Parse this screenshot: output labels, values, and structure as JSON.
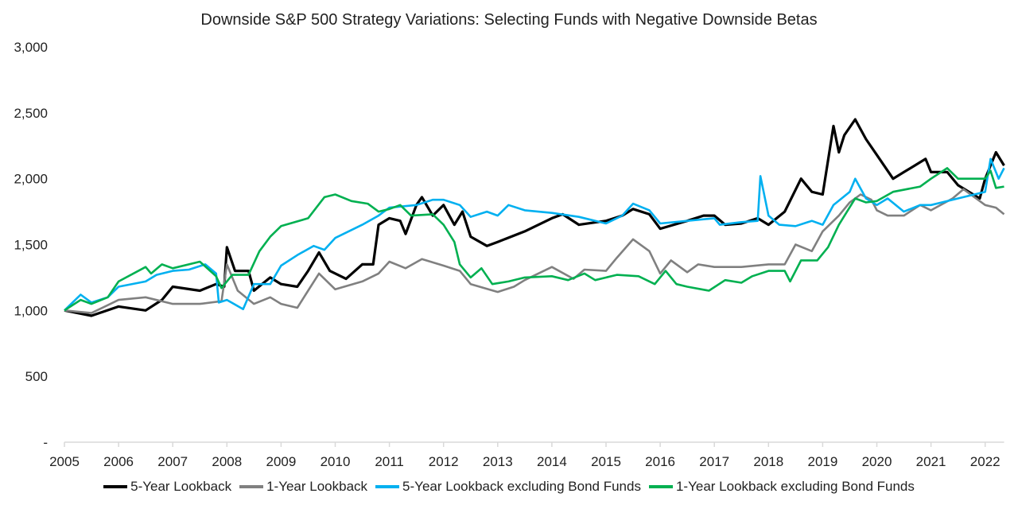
{
  "chart_data": {
    "type": "line",
    "title": "Downside S&P 500 Strategy Variations: Selecting Funds with Negative Downside Betas",
    "xlabel": "",
    "ylabel": "",
    "xlim": [
      2005,
      2022.35
    ],
    "ylim": [
      0,
      3000
    ],
    "grid": false,
    "legend": "bottom",
    "x_ticks": [
      "2005",
      "2006",
      "2007",
      "2008",
      "2009",
      "2010",
      "2011",
      "2012",
      "2013",
      "2014",
      "2015",
      "2016",
      "2017",
      "2018",
      "2019",
      "2020",
      "2021",
      "2022"
    ],
    "y_ticks": [
      {
        "v": 0,
        "label": "-"
      },
      {
        "v": 500,
        "label": "500"
      },
      {
        "v": 1000,
        "label": "1,000"
      },
      {
        "v": 1500,
        "label": "1,500"
      },
      {
        "v": 2000,
        "label": "2,000"
      },
      {
        "v": 2500,
        "label": "2,500"
      },
      {
        "v": 3000,
        "label": "3,000"
      }
    ],
    "series": [
      {
        "name": "5-Year Lookback",
        "color": "#000000",
        "points": [
          [
            2005,
            1000
          ],
          [
            2005.5,
            960
          ],
          [
            2006,
            1030
          ],
          [
            2006.5,
            1000
          ],
          [
            2006.8,
            1080
          ],
          [
            2007,
            1180
          ],
          [
            2007.5,
            1150
          ],
          [
            2007.8,
            1200
          ],
          [
            2007.95,
            1180
          ],
          [
            2008,
            1480
          ],
          [
            2008.15,
            1300
          ],
          [
            2008.4,
            1300
          ],
          [
            2008.5,
            1150
          ],
          [
            2008.8,
            1250
          ],
          [
            2009,
            1200
          ],
          [
            2009.3,
            1180
          ],
          [
            2009.5,
            1300
          ],
          [
            2009.7,
            1440
          ],
          [
            2009.9,
            1300
          ],
          [
            2010.2,
            1240
          ],
          [
            2010.5,
            1350
          ],
          [
            2010.7,
            1350
          ],
          [
            2010.8,
            1650
          ],
          [
            2011,
            1700
          ],
          [
            2011.2,
            1680
          ],
          [
            2011.3,
            1580
          ],
          [
            2011.5,
            1800
          ],
          [
            2011.6,
            1860
          ],
          [
            2011.8,
            1720
          ],
          [
            2012,
            1800
          ],
          [
            2012.2,
            1650
          ],
          [
            2012.35,
            1750
          ],
          [
            2012.5,
            1560
          ],
          [
            2012.8,
            1490
          ],
          [
            2013,
            1520
          ],
          [
            2013.5,
            1600
          ],
          [
            2014,
            1700
          ],
          [
            2014.2,
            1730
          ],
          [
            2014.5,
            1650
          ],
          [
            2015,
            1680
          ],
          [
            2015.3,
            1720
          ],
          [
            2015.5,
            1770
          ],
          [
            2015.8,
            1730
          ],
          [
            2016,
            1620
          ],
          [
            2016.5,
            1680
          ],
          [
            2016.8,
            1720
          ],
          [
            2017,
            1720
          ],
          [
            2017.2,
            1650
          ],
          [
            2017.5,
            1660
          ],
          [
            2017.8,
            1700
          ],
          [
            2018,
            1650
          ],
          [
            2018.3,
            1750
          ],
          [
            2018.6,
            2000
          ],
          [
            2018.8,
            1900
          ],
          [
            2019,
            1880
          ],
          [
            2019.2,
            2400
          ],
          [
            2019.3,
            2200
          ],
          [
            2019.4,
            2330
          ],
          [
            2019.6,
            2450
          ],
          [
            2019.8,
            2300
          ],
          [
            2020,
            2180
          ],
          [
            2020.3,
            2000
          ],
          [
            2020.5,
            2050
          ],
          [
            2020.7,
            2100
          ],
          [
            2020.9,
            2150
          ],
          [
            2021,
            2050
          ],
          [
            2021.3,
            2050
          ],
          [
            2021.5,
            1950
          ],
          [
            2021.7,
            1900
          ],
          [
            2021.9,
            1850
          ],
          [
            2022,
            2000
          ],
          [
            2022.2,
            2200
          ],
          [
            2022.35,
            2100
          ]
        ]
      },
      {
        "name": "1-Year Lookback",
        "color": "#808080",
        "points": [
          [
            2005,
            1000
          ],
          [
            2005.5,
            980
          ],
          [
            2006,
            1080
          ],
          [
            2006.5,
            1100
          ],
          [
            2007,
            1050
          ],
          [
            2007.5,
            1050
          ],
          [
            2007.9,
            1070
          ],
          [
            2008,
            1350
          ],
          [
            2008.2,
            1150
          ],
          [
            2008.5,
            1050
          ],
          [
            2008.8,
            1100
          ],
          [
            2009,
            1050
          ],
          [
            2009.3,
            1020
          ],
          [
            2009.5,
            1150
          ],
          [
            2009.7,
            1280
          ],
          [
            2010,
            1160
          ],
          [
            2010.5,
            1220
          ],
          [
            2010.8,
            1280
          ],
          [
            2011,
            1370
          ],
          [
            2011.3,
            1320
          ],
          [
            2011.6,
            1390
          ],
          [
            2012,
            1340
          ],
          [
            2012.3,
            1300
          ],
          [
            2012.5,
            1200
          ],
          [
            2013,
            1140
          ],
          [
            2013.3,
            1180
          ],
          [
            2013.5,
            1230
          ],
          [
            2014,
            1330
          ],
          [
            2014.4,
            1240
          ],
          [
            2014.6,
            1310
          ],
          [
            2015,
            1300
          ],
          [
            2015.2,
            1400
          ],
          [
            2015.5,
            1540
          ],
          [
            2015.8,
            1450
          ],
          [
            2016,
            1280
          ],
          [
            2016.2,
            1380
          ],
          [
            2016.5,
            1290
          ],
          [
            2016.7,
            1350
          ],
          [
            2017,
            1330
          ],
          [
            2017.5,
            1330
          ],
          [
            2018,
            1350
          ],
          [
            2018.3,
            1350
          ],
          [
            2018.5,
            1500
          ],
          [
            2018.8,
            1450
          ],
          [
            2019,
            1600
          ],
          [
            2019.3,
            1720
          ],
          [
            2019.5,
            1820
          ],
          [
            2019.7,
            1880
          ],
          [
            2019.9,
            1840
          ],
          [
            2020,
            1760
          ],
          [
            2020.2,
            1720
          ],
          [
            2020.5,
            1720
          ],
          [
            2020.8,
            1800
          ],
          [
            2021,
            1760
          ],
          [
            2021.4,
            1850
          ],
          [
            2021.6,
            1920
          ],
          [
            2022,
            1800
          ],
          [
            2022.2,
            1780
          ],
          [
            2022.35,
            1730
          ]
        ]
      },
      {
        "name": "5-Year Lookback excluding Bond Funds",
        "color": "#00b0f0",
        "points": [
          [
            2005,
            1000
          ],
          [
            2005.3,
            1120
          ],
          [
            2005.5,
            1060
          ],
          [
            2005.8,
            1100
          ],
          [
            2006,
            1180
          ],
          [
            2006.5,
            1220
          ],
          [
            2006.7,
            1270
          ],
          [
            2007,
            1300
          ],
          [
            2007.3,
            1310
          ],
          [
            2007.6,
            1350
          ],
          [
            2007.8,
            1280
          ],
          [
            2007.85,
            1060
          ],
          [
            2008,
            1080
          ],
          [
            2008.3,
            1010
          ],
          [
            2008.5,
            1200
          ],
          [
            2008.8,
            1200
          ],
          [
            2009,
            1340
          ],
          [
            2009.3,
            1420
          ],
          [
            2009.6,
            1490
          ],
          [
            2009.8,
            1460
          ],
          [
            2010,
            1550
          ],
          [
            2010.5,
            1650
          ],
          [
            2010.8,
            1720
          ],
          [
            2011,
            1780
          ],
          [
            2011.5,
            1800
          ],
          [
            2011.8,
            1840
          ],
          [
            2012,
            1840
          ],
          [
            2012.3,
            1800
          ],
          [
            2012.5,
            1710
          ],
          [
            2012.8,
            1750
          ],
          [
            2013,
            1720
          ],
          [
            2013.2,
            1800
          ],
          [
            2013.5,
            1760
          ],
          [
            2014,
            1740
          ],
          [
            2014.5,
            1710
          ],
          [
            2015,
            1660
          ],
          [
            2015.3,
            1720
          ],
          [
            2015.5,
            1810
          ],
          [
            2015.8,
            1760
          ],
          [
            2016,
            1660
          ],
          [
            2016.5,
            1680
          ],
          [
            2017,
            1700
          ],
          [
            2017.1,
            1650
          ],
          [
            2017.5,
            1670
          ],
          [
            2017.8,
            1680
          ],
          [
            2017.85,
            2020
          ],
          [
            2018,
            1720
          ],
          [
            2018.2,
            1650
          ],
          [
            2018.5,
            1640
          ],
          [
            2018.8,
            1680
          ],
          [
            2019,
            1650
          ],
          [
            2019.2,
            1800
          ],
          [
            2019.5,
            1900
          ],
          [
            2019.6,
            2000
          ],
          [
            2019.8,
            1850
          ],
          [
            2020,
            1800
          ],
          [
            2020.2,
            1850
          ],
          [
            2020.5,
            1750
          ],
          [
            2020.8,
            1800
          ],
          [
            2021,
            1800
          ],
          [
            2021.5,
            1850
          ],
          [
            2021.8,
            1880
          ],
          [
            2022,
            1900
          ],
          [
            2022.1,
            2150
          ],
          [
            2022.25,
            2000
          ],
          [
            2022.35,
            2080
          ]
        ]
      },
      {
        "name": "1-Year Lookback excluding Bond Funds",
        "color": "#00b050",
        "points": [
          [
            2005,
            1000
          ],
          [
            2005.3,
            1080
          ],
          [
            2005.5,
            1050
          ],
          [
            2005.8,
            1100
          ],
          [
            2006,
            1220
          ],
          [
            2006.5,
            1330
          ],
          [
            2006.6,
            1280
          ],
          [
            2006.8,
            1350
          ],
          [
            2007,
            1320
          ],
          [
            2007.5,
            1370
          ],
          [
            2007.8,
            1260
          ],
          [
            2007.9,
            1170
          ],
          [
            2008.1,
            1270
          ],
          [
            2008.4,
            1270
          ],
          [
            2008.6,
            1450
          ],
          [
            2008.8,
            1560
          ],
          [
            2009,
            1640
          ],
          [
            2009.5,
            1700
          ],
          [
            2009.8,
            1860
          ],
          [
            2010,
            1880
          ],
          [
            2010.3,
            1830
          ],
          [
            2010.6,
            1810
          ],
          [
            2010.8,
            1750
          ],
          [
            2011,
            1770
          ],
          [
            2011.2,
            1800
          ],
          [
            2011.4,
            1720
          ],
          [
            2011.8,
            1730
          ],
          [
            2012,
            1650
          ],
          [
            2012.2,
            1520
          ],
          [
            2012.3,
            1350
          ],
          [
            2012.5,
            1250
          ],
          [
            2012.7,
            1320
          ],
          [
            2012.9,
            1200
          ],
          [
            2013.2,
            1220
          ],
          [
            2013.5,
            1250
          ],
          [
            2014,
            1260
          ],
          [
            2014.3,
            1230
          ],
          [
            2014.6,
            1280
          ],
          [
            2014.8,
            1230
          ],
          [
            2015.2,
            1270
          ],
          [
            2015.6,
            1260
          ],
          [
            2015.9,
            1200
          ],
          [
            2016.1,
            1300
          ],
          [
            2016.3,
            1200
          ],
          [
            2016.5,
            1180
          ],
          [
            2016.9,
            1150
          ],
          [
            2017.2,
            1230
          ],
          [
            2017.5,
            1210
          ],
          [
            2017.7,
            1260
          ],
          [
            2018,
            1300
          ],
          [
            2018.3,
            1300
          ],
          [
            2018.4,
            1220
          ],
          [
            2018.6,
            1380
          ],
          [
            2018.9,
            1380
          ],
          [
            2019.1,
            1480
          ],
          [
            2019.3,
            1650
          ],
          [
            2019.6,
            1850
          ],
          [
            2019.8,
            1820
          ],
          [
            2020,
            1830
          ],
          [
            2020.3,
            1900
          ],
          [
            2020.8,
            1940
          ],
          [
            2021,
            2000
          ],
          [
            2021.3,
            2080
          ],
          [
            2021.5,
            2000
          ],
          [
            2021.8,
            2000
          ],
          [
            2022,
            2000
          ],
          [
            2022.1,
            2060
          ],
          [
            2022.2,
            1930
          ],
          [
            2022.35,
            1940
          ]
        ]
      }
    ]
  }
}
